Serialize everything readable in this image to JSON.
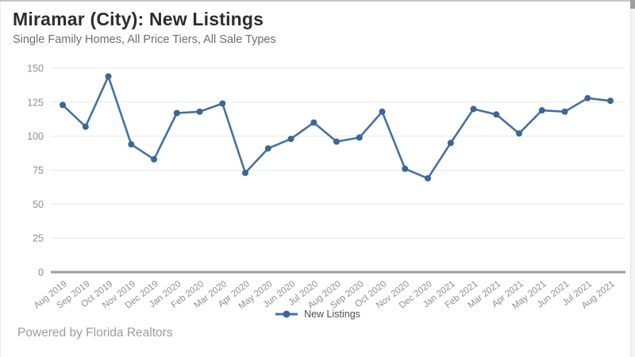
{
  "header": {
    "title": "Miramar (City): New Listings",
    "subtitle": "Single Family Homes, All Price Tiers, All Sale Types"
  },
  "legend": {
    "label": "New Listings"
  },
  "footer": {
    "text": "Powered by Florida Realtors"
  },
  "colors": {
    "line": "#44729f",
    "marker": "#3a6795",
    "grid": "#e7e7e7",
    "axis": "#9e9e9e",
    "tick_label": "#8f8f8f"
  },
  "chart_data": {
    "type": "line",
    "title": "Miramar (City): New Listings",
    "subtitle": "Single Family Homes, All Price Tiers, All Sale Types",
    "categories": [
      "Aug 2019",
      "Sep 2019",
      "Oct 2019",
      "Nov 2019",
      "Dec 2019",
      "Jan 2020",
      "Feb 2020",
      "Mar 2020",
      "Apr 2020",
      "May 2020",
      "Jun 2020",
      "Jul 2020",
      "Aug 2020",
      "Sep 2020",
      "Oct 2020",
      "Nov 2020",
      "Dec 2020",
      "Jan 2021",
      "Feb 2021",
      "Mar 2021",
      "Apr 2021",
      "May 2021",
      "Jun 2021",
      "Jul 2021",
      "Aug 2021"
    ],
    "series": [
      {
        "name": "New Listings",
        "values": [
          123,
          107,
          144,
          94,
          83,
          117,
          118,
          124,
          73,
          91,
          98,
          110,
          96,
          99,
          118,
          76,
          69,
          95,
          120,
          116,
          102,
          119,
          118,
          128,
          126
        ]
      }
    ],
    "ylim": [
      0,
      150
    ],
    "yticks": [
      0,
      25,
      50,
      75,
      100,
      125,
      150
    ],
    "grid": true,
    "legend_position": "bottom",
    "x_label_rotation": -38
  }
}
